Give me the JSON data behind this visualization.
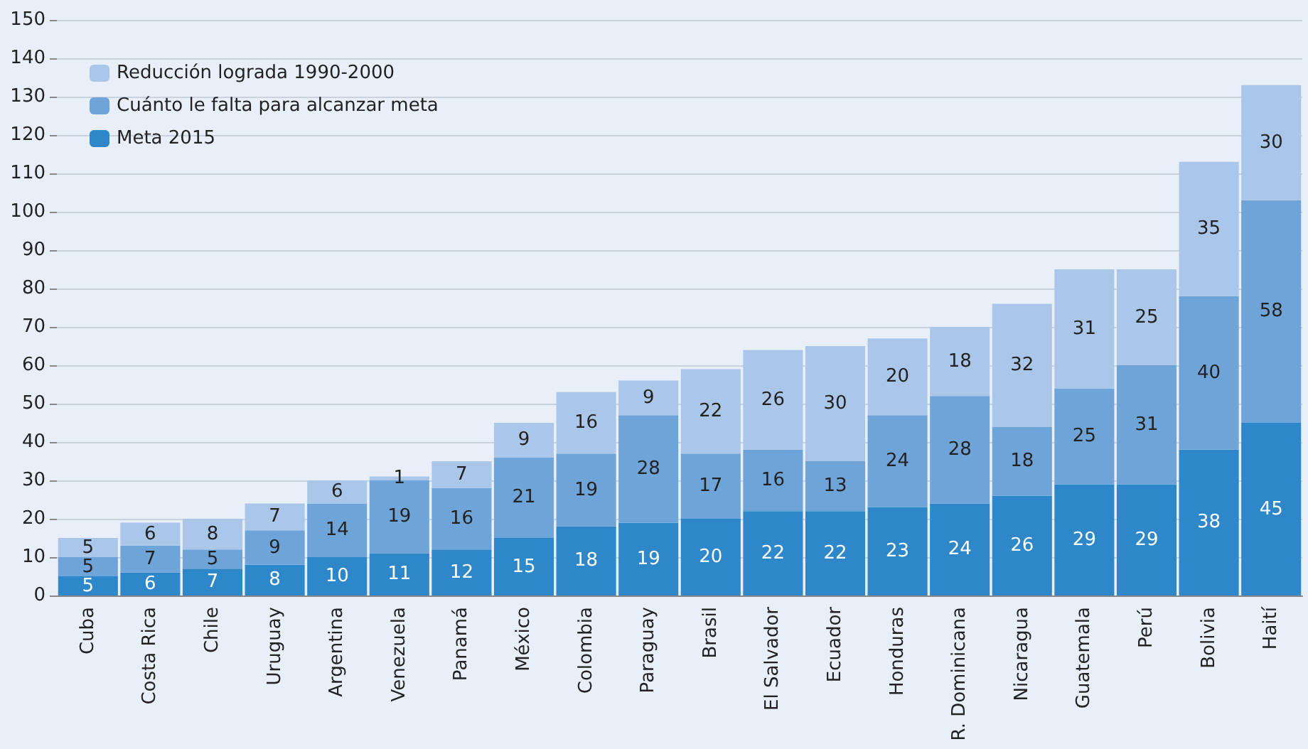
{
  "chart_data": {
    "type": "bar",
    "stacked": true,
    "data_labels": true,
    "grid": "y",
    "legend": "top left",
    "categories": [
      "Cuba",
      "Costa Rica",
      "Chile",
      "Uruguay",
      "Argentina",
      "Venezuela",
      "Panamá",
      "México",
      "Colombia",
      "Paraguay",
      "Brasil",
      "El Salvador",
      "Ecuador",
      "Honduras",
      "R. Dominicana",
      "Nicaragua",
      "Guatemala",
      "Perú",
      "Bolivia",
      "Haití"
    ],
    "series": [
      {
        "name": "Meta 2015",
        "color": "#2d87c8",
        "values": [
          5,
          6,
          7,
          8,
          10,
          11,
          12,
          15,
          18,
          19,
          20,
          22,
          22,
          23,
          24,
          26,
          29,
          29,
          38,
          45
        ]
      },
      {
        "name": "Cuánto le falta para alcanzar meta",
        "color": "#6fa4d9",
        "values": [
          5,
          7,
          5,
          9,
          14,
          19,
          16,
          21,
          19,
          28,
          17,
          16,
          13,
          24,
          28,
          18,
          25,
          31,
          40,
          58
        ]
      },
      {
        "name": "Reducción lograda 1990-2000",
        "color": "#aac7ea",
        "values": [
          5,
          6,
          8,
          7,
          6,
          1,
          7,
          9,
          16,
          9,
          22,
          26,
          30,
          20,
          18,
          32,
          31,
          25,
          35,
          30
        ]
      }
    ],
    "ylim": [
      0,
      150
    ],
    "yticks": [
      0,
      10,
      20,
      30,
      40,
      50,
      60,
      70,
      80,
      90,
      100,
      110,
      120,
      130,
      140,
      150
    ]
  }
}
